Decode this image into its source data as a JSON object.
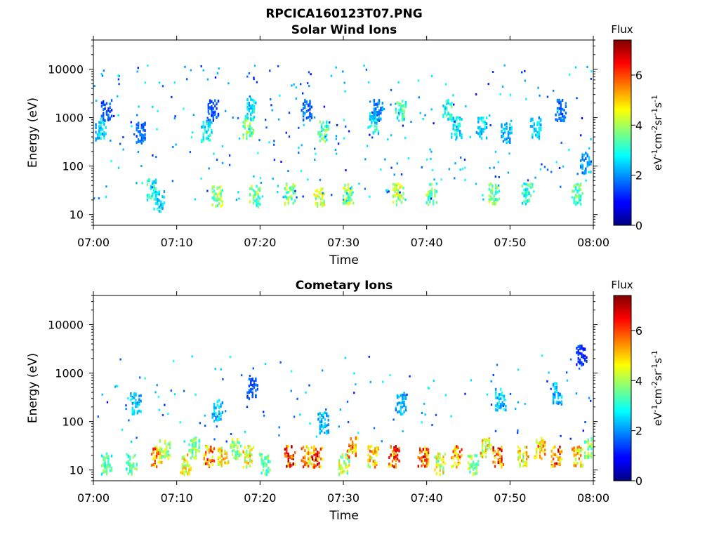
{
  "figure": {
    "title": "RPCICA160123T07.PNG"
  },
  "colorbar": {
    "label": "Flux",
    "unit_parts": [
      "eV",
      "-1",
      "cm",
      "-2",
      "sr",
      "-1",
      "s",
      "-1"
    ],
    "range": [
      0,
      7.4
    ],
    "ticks": [
      "0",
      "2",
      "4",
      "6"
    ],
    "colormap": "jet"
  },
  "chart_data": [
    {
      "type": "heatmap",
      "title": "Solar Wind Ions",
      "xlabel": "Time",
      "ylabel": "Energy (eV)",
      "xlim": [
        "07:00",
        "08:00"
      ],
      "ylim": [
        6,
        40000
      ],
      "yscale": "log",
      "x_ticks": [
        "07:00",
        "07:10",
        "07:20",
        "07:30",
        "07:40",
        "07:50",
        "08:00"
      ],
      "y_ticks": [
        "10",
        "100",
        "1000",
        "10000"
      ],
      "clusters": [
        {
          "t": 0.8,
          "energy": 600,
          "flux": 2.6
        },
        {
          "t": 1.5,
          "energy": 1500,
          "flux": 1.6
        },
        {
          "t": 5.5,
          "energy": 500,
          "flux": 1.8
        },
        {
          "t": 7.0,
          "energy": 35,
          "flux": 3.2
        },
        {
          "t": 7.8,
          "energy": 20,
          "flux": 2.8
        },
        {
          "t": 13.5,
          "energy": 550,
          "flux": 3.0
        },
        {
          "t": 14.3,
          "energy": 1500,
          "flux": 1.6
        },
        {
          "t": 14.8,
          "energy": 25,
          "flux": 4.2
        },
        {
          "t": 18.5,
          "energy": 650,
          "flux": 3.8
        },
        {
          "t": 18.8,
          "energy": 1600,
          "flux": 2.8
        },
        {
          "t": 19.3,
          "energy": 25,
          "flux": 3.8
        },
        {
          "t": 23.5,
          "energy": 28,
          "flux": 4.0
        },
        {
          "t": 25.5,
          "energy": 1500,
          "flux": 1.8
        },
        {
          "t": 27.0,
          "energy": 25,
          "flux": 4.5
        },
        {
          "t": 27.5,
          "energy": 550,
          "flux": 3.6
        },
        {
          "t": 30.5,
          "energy": 28,
          "flux": 4.2
        },
        {
          "t": 33.5,
          "energy": 800,
          "flux": 3.0
        },
        {
          "t": 34.0,
          "energy": 1500,
          "flux": 2.0
        },
        {
          "t": 36.5,
          "energy": 28,
          "flux": 4.4
        },
        {
          "t": 36.8,
          "energy": 1500,
          "flux": 3.4
        },
        {
          "t": 40.5,
          "energy": 28,
          "flux": 3.8
        },
        {
          "t": 42.5,
          "energy": 1500,
          "flux": 3.2
        },
        {
          "t": 43.5,
          "energy": 650,
          "flux": 2.8
        },
        {
          "t": 46.5,
          "energy": 650,
          "flux": 2.6
        },
        {
          "t": 48.0,
          "energy": 28,
          "flux": 3.8
        },
        {
          "t": 49.5,
          "energy": 500,
          "flux": 2.4
        },
        {
          "t": 52.0,
          "energy": 28,
          "flux": 3.4
        },
        {
          "t": 53.0,
          "energy": 650,
          "flux": 2.6
        },
        {
          "t": 56.0,
          "energy": 1500,
          "flux": 1.8
        },
        {
          "t": 58.0,
          "energy": 28,
          "flux": 3.6
        },
        {
          "t": 59.0,
          "energy": 120,
          "flux": 2.2
        }
      ]
    },
    {
      "type": "heatmap",
      "title": "Cometary Ions",
      "xlabel": "Time",
      "ylabel": "Energy (eV)",
      "xlim": [
        "07:00",
        "08:00"
      ],
      "ylim": [
        6,
        40000
      ],
      "yscale": "log",
      "x_ticks": [
        "07:00",
        "07:10",
        "07:20",
        "07:30",
        "07:40",
        "07:50",
        "08:00"
      ],
      "y_ticks": [
        "10",
        "100",
        "1000",
        "10000"
      ],
      "clusters": [
        {
          "t": 1.5,
          "energy": 14,
          "flux": 3.6
        },
        {
          "t": 4.5,
          "energy": 14,
          "flux": 3.6
        },
        {
          "t": 5.0,
          "energy": 250,
          "flux": 2.6
        },
        {
          "t": 7.5,
          "energy": 20,
          "flux": 5.6
        },
        {
          "t": 8.5,
          "energy": 30,
          "flux": 4.2
        },
        {
          "t": 11.0,
          "energy": 14,
          "flux": 4.8
        },
        {
          "t": 12.0,
          "energy": 30,
          "flux": 4.0
        },
        {
          "t": 13.8,
          "energy": 20,
          "flux": 5.8
        },
        {
          "t": 14.8,
          "energy": 180,
          "flux": 2.6
        },
        {
          "t": 15.5,
          "energy": 20,
          "flux": 5.0
        },
        {
          "t": 17.0,
          "energy": 30,
          "flux": 4.2
        },
        {
          "t": 18.5,
          "energy": 20,
          "flux": 4.8
        },
        {
          "t": 19.0,
          "energy": 500,
          "flux": 1.6
        },
        {
          "t": 20.5,
          "energy": 14,
          "flux": 3.8
        },
        {
          "t": 23.5,
          "energy": 20,
          "flux": 6.6
        },
        {
          "t": 25.5,
          "energy": 20,
          "flux": 5.6
        },
        {
          "t": 26.8,
          "energy": 20,
          "flux": 6.4
        },
        {
          "t": 27.5,
          "energy": 100,
          "flux": 2.6
        },
        {
          "t": 30.0,
          "energy": 14,
          "flux": 4.4
        },
        {
          "t": 31.0,
          "energy": 30,
          "flux": 5.8
        },
        {
          "t": 33.5,
          "energy": 20,
          "flux": 5.2
        },
        {
          "t": 36.0,
          "energy": 20,
          "flux": 6.4
        },
        {
          "t": 36.8,
          "energy": 250,
          "flux": 2.4
        },
        {
          "t": 39.5,
          "energy": 20,
          "flux": 6.0
        },
        {
          "t": 41.5,
          "energy": 14,
          "flux": 4.6
        },
        {
          "t": 43.5,
          "energy": 20,
          "flux": 5.6
        },
        {
          "t": 45.5,
          "energy": 14,
          "flux": 4.2
        },
        {
          "t": 47.0,
          "energy": 30,
          "flux": 5.0
        },
        {
          "t": 48.5,
          "energy": 20,
          "flux": 6.2
        },
        {
          "t": 48.8,
          "energy": 300,
          "flux": 2.6
        },
        {
          "t": 51.5,
          "energy": 20,
          "flux": 5.0
        },
        {
          "t": 53.5,
          "energy": 30,
          "flux": 5.4
        },
        {
          "t": 55.5,
          "energy": 20,
          "flux": 6.2
        },
        {
          "t": 55.5,
          "energy": 400,
          "flux": 2.4
        },
        {
          "t": 58.0,
          "energy": 20,
          "flux": 5.0
        },
        {
          "t": 58.5,
          "energy": 2500,
          "flux": 1.4
        },
        {
          "t": 59.5,
          "energy": 30,
          "flux": 4.0
        }
      ]
    }
  ]
}
